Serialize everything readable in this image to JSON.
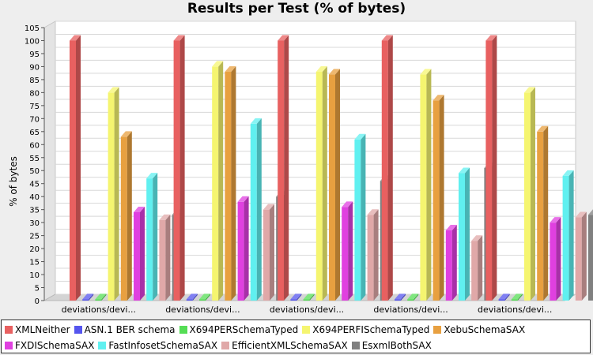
{
  "chart_data": {
    "type": "bar",
    "title": "Results per Test (% of bytes)",
    "ylabel": "% of bytes",
    "xlabel": "",
    "ylim": [
      0,
      105
    ],
    "yticks": [
      0,
      5,
      10,
      15,
      20,
      25,
      30,
      35,
      40,
      45,
      50,
      55,
      60,
      65,
      70,
      75,
      80,
      85,
      90,
      95,
      100,
      105
    ],
    "categories": [
      "deviations/devi...",
      "deviations/devi...",
      "deviations/devi...",
      "deviations/devi...",
      "deviations/devi..."
    ],
    "series": [
      {
        "name": "XMLNeither",
        "color": "#e86060",
        "values": [
          100,
          100,
          100,
          100,
          100
        ]
      },
      {
        "name": "ASN.1 BER schema",
        "color": "#5555ee",
        "values": [
          0.5,
          0.5,
          0.5,
          0.5,
          0.5
        ]
      },
      {
        "name": "X694PERSchemaTyped",
        "color": "#55dd55",
        "values": [
          0.5,
          0.5,
          0.5,
          0.5,
          0.5
        ]
      },
      {
        "name": "X694PERFISchemaTyped",
        "color": "#f5f570",
        "values": [
          80,
          90,
          88,
          87,
          80
        ]
      },
      {
        "name": "XebuSchemaSAX",
        "color": "#e8a040",
        "values": [
          63,
          88,
          87,
          77,
          65
        ]
      },
      {
        "name": "FXDISchemaSAX",
        "color": "#e040e0",
        "values": [
          34,
          38,
          36,
          27,
          30
        ]
      },
      {
        "name": "FastInfosetSchemaSAX",
        "color": "#60f0f0",
        "values": [
          47,
          68,
          62,
          49,
          48
        ]
      },
      {
        "name": "EfficientXMLSchemaSAX",
        "color": "#e0a8a8",
        "values": [
          31,
          35,
          33,
          23,
          32
        ]
      },
      {
        "name": "EsxmlBothSAX",
        "color": "#808080",
        "values": [
          33,
          40,
          46,
          51,
          33
        ]
      }
    ],
    "legend_position": "bottom",
    "grid": true
  }
}
